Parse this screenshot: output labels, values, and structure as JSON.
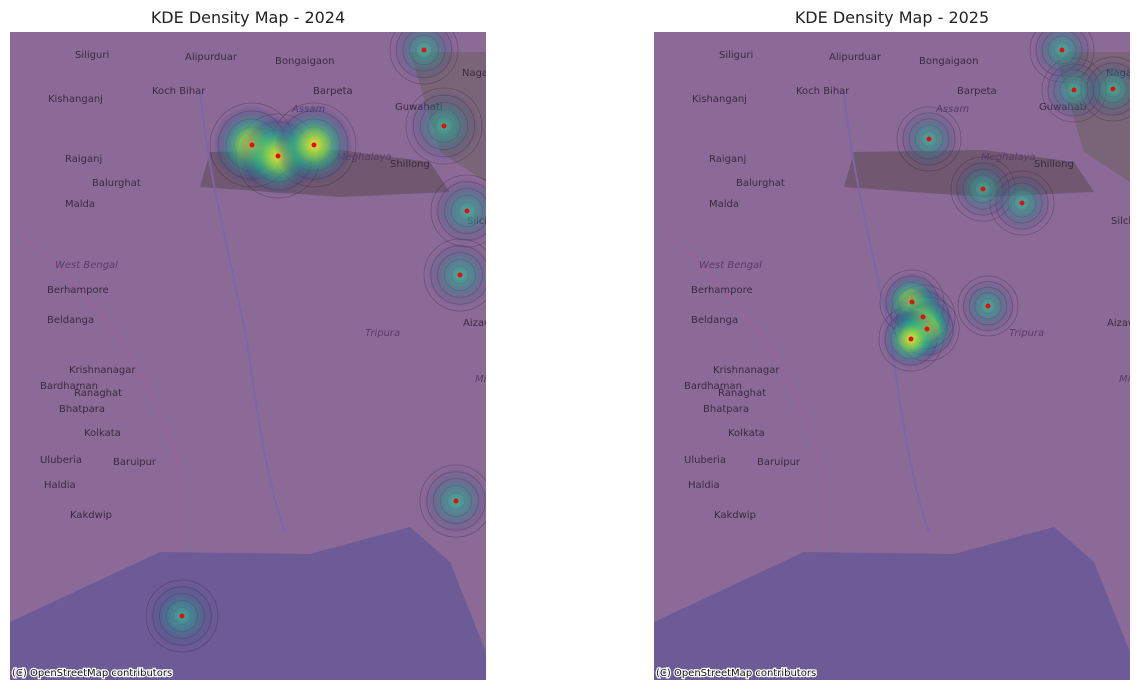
{
  "maps": [
    {
      "title": "KDE Density Map - 2024",
      "attribution": "(C) OpenStreetMap contributors"
    },
    {
      "title": "KDE Density Map - 2025",
      "attribution": "(C) OpenStreetMap contributors"
    }
  ],
  "map_labels": [
    "Siliguri",
    "Alipurduar",
    "Bongaigaon",
    "Nagaon",
    "Kishanganj",
    "Koch Bihar",
    "Barpeta",
    "Guwahati",
    "Assam",
    "Raiganj",
    "Balurghat",
    "Meghalaya",
    "Shillong",
    "Malda",
    "Silchar",
    "West Bengal",
    "Berhampore",
    "Beldanga",
    "Aizawl",
    "Tripura",
    "Krishnanagar",
    "Bardhaman",
    "Ranaghat",
    "Bhatpara",
    "Kolkata",
    "Uluberia",
    "Baruipur",
    "Haldia",
    "Kakdwip",
    "Mizoram"
  ]
}
